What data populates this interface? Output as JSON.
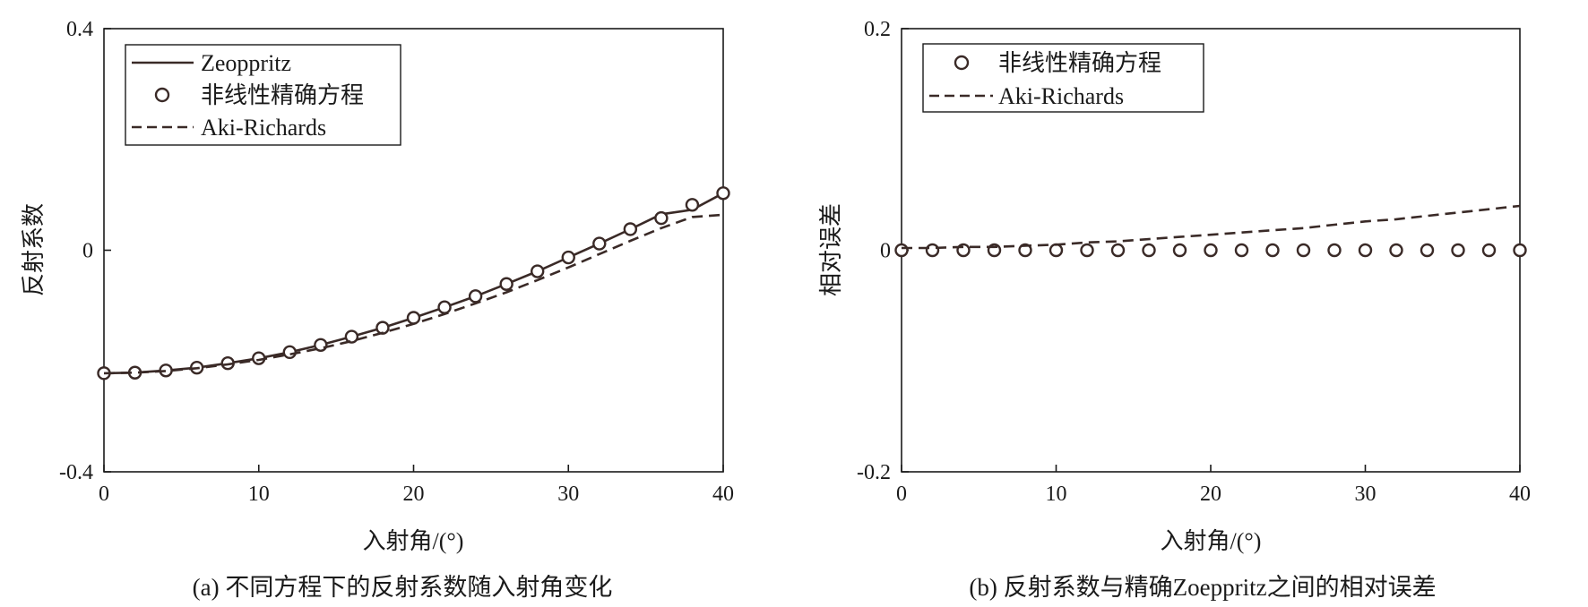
{
  "chart_data": [
    {
      "type": "line",
      "caption": "(a) 不同方程下的反射系数随入射角变化",
      "xlabel": "入射角/(°)",
      "ylabel": "反射系数",
      "xlim": [
        0,
        40
      ],
      "ylim": [
        -0.4,
        0.4
      ],
      "xticks": [
        "0",
        "10",
        "20",
        "30",
        "40"
      ],
      "yticks": [
        "-0.4",
        "0",
        "0.4"
      ],
      "grid": false,
      "legend_position": "top-left",
      "x": [
        0,
        2,
        4,
        6,
        8,
        10,
        12,
        14,
        16,
        18,
        20,
        22,
        24,
        26,
        28,
        30,
        32,
        34,
        36,
        38,
        40
      ],
      "series": [
        {
          "name": "Zeoppritz",
          "style": "solid",
          "color": "#3a2a27",
          "values": [
            -0.222,
            -0.221,
            -0.217,
            -0.212,
            -0.204,
            -0.195,
            -0.184,
            -0.171,
            -0.156,
            -0.14,
            -0.122,
            -0.103,
            -0.083,
            -0.061,
            -0.038,
            -0.013,
            0.012,
            0.038,
            0.065,
            0.073,
            0.103
          ]
        },
        {
          "name": "非线性精确方程",
          "style": "circles",
          "color": "#3a2a27",
          "values": [
            -0.222,
            -0.221,
            -0.217,
            -0.212,
            -0.204,
            -0.195,
            -0.184,
            -0.171,
            -0.156,
            -0.14,
            -0.122,
            -0.103,
            -0.083,
            -0.061,
            -0.038,
            -0.013,
            0.012,
            0.038,
            0.058,
            0.082,
            0.103
          ]
        },
        {
          "name": "Aki-Richards",
          "style": "dashed",
          "color": "#3a2a27",
          "values": [
            -0.222,
            -0.221,
            -0.218,
            -0.213,
            -0.206,
            -0.198,
            -0.188,
            -0.177,
            -0.164,
            -0.149,
            -0.133,
            -0.115,
            -0.096,
            -0.076,
            -0.054,
            -0.031,
            -0.007,
            0.017,
            0.04,
            0.06,
            0.064
          ]
        }
      ]
    },
    {
      "type": "line",
      "caption": "(b) 反射系数与精确Zoeppritz之间的相对误差",
      "xlabel": "入射角/(°)",
      "ylabel": "相对误差",
      "xlim": [
        0,
        40
      ],
      "ylim": [
        -0.2,
        0.2
      ],
      "xticks": [
        "0",
        "10",
        "20",
        "30",
        "40"
      ],
      "yticks": [
        "-0.2",
        "0",
        "0.2"
      ],
      "grid": false,
      "legend_position": "top-left",
      "x": [
        0,
        2,
        4,
        6,
        8,
        10,
        12,
        14,
        16,
        18,
        20,
        22,
        24,
        26,
        28,
        30,
        32,
        34,
        36,
        38,
        40
      ],
      "series": [
        {
          "name": "非线性精确方程",
          "style": "circles",
          "color": "#3a2a27",
          "values": [
            0,
            0,
            0,
            0,
            0,
            0,
            0,
            0,
            0,
            0,
            0,
            0,
            0,
            0,
            0,
            0,
            0,
            0,
            0,
            0,
            0
          ]
        },
        {
          "name": "Aki-Richards",
          "style": "dashed",
          "color": "#3a2a27",
          "values": [
            0.002,
            0.002,
            0.003,
            0.003,
            0.004,
            0.005,
            0.007,
            0.008,
            0.01,
            0.012,
            0.014,
            0.016,
            0.018,
            0.02,
            0.023,
            0.026,
            0.028,
            0.031,
            0.034,
            0.037,
            0.04
          ]
        }
      ]
    }
  ]
}
